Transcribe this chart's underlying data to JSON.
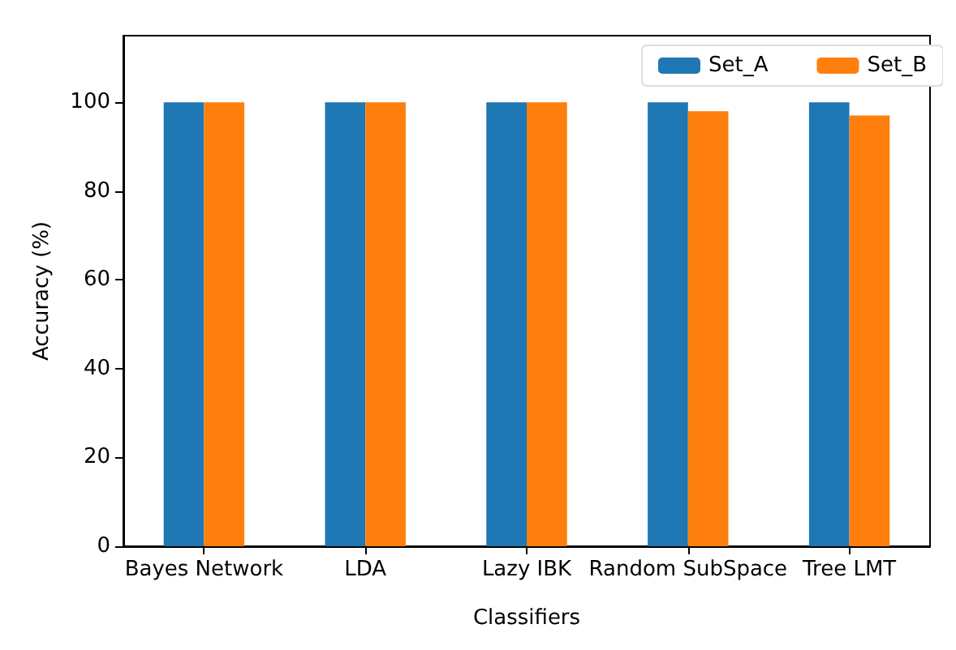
{
  "chart_data": {
    "type": "bar",
    "xlabel": "Classifiers",
    "ylabel": "Accuracy (%)",
    "categories": [
      "Bayes Network",
      "LDA",
      "Lazy IBK",
      "Random SubSpace",
      "Tree LMT"
    ],
    "series": [
      {
        "name": "Set_A",
        "color": "#1f77b4",
        "values": [
          100,
          100,
          100,
          100,
          100
        ]
      },
      {
        "name": "Set_B",
        "color": "#ff7f0e",
        "values": [
          100,
          100,
          100,
          98,
          97
        ]
      }
    ],
    "ylim": [
      0,
      115
    ],
    "yticks": [
      0,
      20,
      40,
      60,
      80,
      100
    ],
    "grid": false,
    "legend": "top right"
  }
}
